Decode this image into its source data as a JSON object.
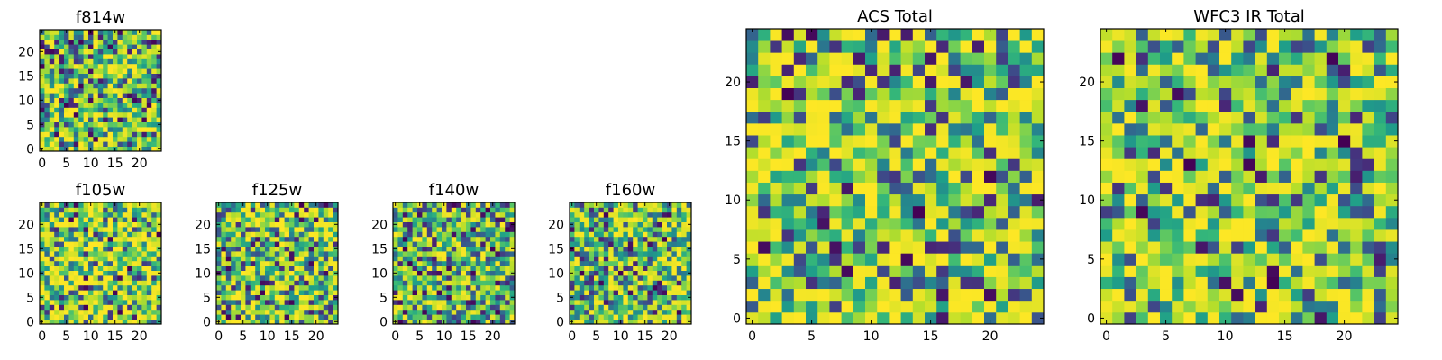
{
  "chart_data": [
    {
      "type": "heatmap",
      "title": "f814w",
      "grid": false,
      "colormap": "viridis",
      "size": 25,
      "seed": 11,
      "contrast": 2.0,
      "extent": [
        -0.5,
        24.5,
        -0.5,
        24.5
      ],
      "xticks": [
        0,
        5,
        10,
        15,
        20
      ],
      "yticks": [
        0,
        5,
        10,
        15,
        20
      ],
      "xtick_labels": [
        "0",
        "5",
        "10",
        "15",
        "20"
      ],
      "ytick_labels": [
        "0",
        "5",
        "10",
        "15",
        "20"
      ]
    },
    {
      "type": "heatmap",
      "title": "f105w",
      "grid": false,
      "colormap": "viridis",
      "size": 25,
      "seed": 23,
      "contrast": 2.6,
      "extent": [
        -0.5,
        24.5,
        -0.5,
        24.5
      ],
      "xticks": [
        0,
        5,
        10,
        15,
        20
      ],
      "yticks": [
        0,
        5,
        10,
        15,
        20
      ],
      "xtick_labels": [
        "0",
        "5",
        "10",
        "15",
        "20"
      ],
      "ytick_labels": [
        "0",
        "5",
        "10",
        "15",
        "20"
      ]
    },
    {
      "type": "heatmap",
      "title": "f125w",
      "grid": false,
      "colormap": "viridis",
      "size": 25,
      "seed": 37,
      "contrast": 2.0,
      "extent": [
        -0.5,
        24.5,
        -0.5,
        24.5
      ],
      "xticks": [
        0,
        5,
        10,
        15,
        20
      ],
      "yticks": [
        0,
        5,
        10,
        15,
        20
      ],
      "xtick_labels": [
        "0",
        "5",
        "10",
        "15",
        "20"
      ],
      "ytick_labels": [
        "0",
        "5",
        "10",
        "15",
        "20"
      ]
    },
    {
      "type": "heatmap",
      "title": "f140w",
      "grid": false,
      "colormap": "viridis",
      "size": 25,
      "seed": 41,
      "contrast": 1.6,
      "extent": [
        -0.5,
        24.5,
        -0.5,
        24.5
      ],
      "xticks": [
        0,
        5,
        10,
        15,
        20
      ],
      "yticks": [
        0,
        5,
        10,
        15,
        20
      ],
      "xtick_labels": [
        "0",
        "5",
        "10",
        "15",
        "20"
      ],
      "ytick_labels": [
        "0",
        "5",
        "10",
        "15",
        "20"
      ]
    },
    {
      "type": "heatmap",
      "title": "f160w",
      "grid": false,
      "colormap": "viridis",
      "size": 25,
      "seed": 53,
      "contrast": 1.8,
      "extent": [
        -0.5,
        24.5,
        -0.5,
        24.5
      ],
      "xticks": [
        0,
        5,
        10,
        15,
        20
      ],
      "yticks": [
        0,
        5,
        10,
        15,
        20
      ],
      "xtick_labels": [
        "0",
        "5",
        "10",
        "15",
        "20"
      ],
      "ytick_labels": [
        "0",
        "5",
        "10",
        "15",
        "20"
      ]
    },
    {
      "type": "heatmap",
      "title": "ACS Total",
      "grid": false,
      "colormap": "viridis",
      "size": 25,
      "seed": 67,
      "contrast": 2.3,
      "extent": [
        -0.5,
        24.5,
        -0.5,
        24.5
      ],
      "xticks": [
        0,
        5,
        10,
        15,
        20
      ],
      "yticks": [
        0,
        5,
        10,
        15,
        20
      ],
      "xtick_labels": [
        "0",
        "5",
        "10",
        "15",
        "20"
      ],
      "ytick_labels": [
        "0",
        "5",
        "10",
        "15",
        "20"
      ]
    },
    {
      "type": "heatmap",
      "title": "WFC3 IR Total",
      "grid": false,
      "colormap": "viridis",
      "size": 25,
      "seed": 79,
      "contrast": 2.3,
      "extent": [
        -0.5,
        24.5,
        -0.5,
        24.5
      ],
      "xticks": [
        0,
        5,
        10,
        15,
        20
      ],
      "yticks": [
        0,
        5,
        10,
        15,
        20
      ],
      "xtick_labels": [
        "0",
        "5",
        "10",
        "15",
        "20"
      ],
      "ytick_labels": [
        "0",
        "5",
        "10",
        "15",
        "20"
      ]
    }
  ]
}
